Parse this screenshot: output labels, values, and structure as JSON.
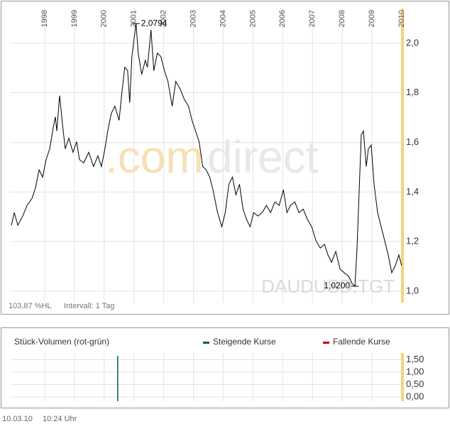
{
  "chart_data": [
    {
      "type": "line",
      "watermark": [
        ".com",
        "direct"
      ],
      "instrument": "DAUDUSD.TGT",
      "info": [
        "103,87 %HL",
        "Intervall: 1 Tag"
      ],
      "xlim": [
        1996.83,
        2010.05
      ],
      "xticks": [
        1998,
        1999,
        2000,
        2001,
        2002,
        2003,
        2004,
        2005,
        2006,
        2007,
        2008,
        2009,
        2010
      ],
      "ylim": [
        0.954,
        2.14
      ],
      "yticks": [
        {
          "value": 1.0,
          "label": "1,0"
        },
        {
          "value": 1.2,
          "label": "1,2"
        },
        {
          "value": 1.4,
          "label": "1,4"
        },
        {
          "value": 1.6,
          "label": "1,6"
        },
        {
          "value": 1.8,
          "label": "1,8"
        },
        {
          "value": 2.0,
          "label": "2,0"
        }
      ],
      "grid": true,
      "x": [
        1996.881,
        1996.976,
        1997.095,
        1997.262,
        1997.405,
        1997.571,
        1997.69,
        1997.81,
        1997.929,
        1998.048,
        1998.167,
        1998.286,
        1998.357,
        1998.405,
        1998.5,
        1998.595,
        1998.69,
        1998.81,
        1998.952,
        1999.071,
        1999.167,
        1999.31,
        1999.476,
        1999.643,
        1999.786,
        1999.905,
        2000.024,
        2000.119,
        2000.238,
        2000.357,
        2000.5,
        2000.595,
        2000.69,
        2000.786,
        2000.857,
        2000.929,
        2001.071,
        2001.143,
        2001.262,
        2001.381,
        2001.452,
        2001.571,
        2001.667,
        2001.786,
        2001.905,
        2002.024,
        2002.143,
        2002.286,
        2002.405,
        2002.548,
        2002.69,
        2002.833,
        2002.952,
        2003.071,
        2003.19,
        2003.31,
        2003.429,
        2003.548,
        2003.667,
        2003.81,
        2003.952,
        2004.071,
        2004.19,
        2004.31,
        2004.429,
        2004.548,
        2004.667,
        2004.786,
        2004.905,
        2005.024,
        2005.167,
        2005.31,
        2005.452,
        2005.595,
        2005.738,
        2005.881,
        2006.024,
        2006.143,
        2006.262,
        2006.405,
        2006.548,
        2006.69,
        2006.833,
        2006.976,
        2007.119,
        2007.262,
        2007.405,
        2007.524,
        2007.643,
        2007.786,
        2007.929,
        2008.071,
        2008.214,
        2008.333,
        2008.429,
        2008.5,
        2008.571,
        2008.643,
        2008.714,
        2008.81,
        2008.881,
        2008.976,
        2009.071,
        2009.19,
        2009.31,
        2009.429,
        2009.548,
        2009.667,
        2009.786,
        2009.905,
        2010.0
      ],
      "series": [
        {
          "color": "#000000",
          "values": [
            1.266,
            1.317,
            1.266,
            1.303,
            1.346,
            1.374,
            1.417,
            1.489,
            1.46,
            1.531,
            1.574,
            1.66,
            1.703,
            1.646,
            1.789,
            1.674,
            1.574,
            1.617,
            1.56,
            1.603,
            1.531,
            1.517,
            1.56,
            1.503,
            1.546,
            1.503,
            1.574,
            1.646,
            1.717,
            1.746,
            1.689,
            1.803,
            1.903,
            1.889,
            1.76,
            1.946,
            2.0794,
            1.96,
            1.874,
            1.931,
            1.903,
            2.054,
            1.889,
            1.96,
            1.946,
            1.889,
            1.846,
            1.746,
            1.846,
            1.817,
            1.774,
            1.746,
            1.689,
            1.646,
            1.603,
            1.503,
            1.489,
            1.46,
            1.403,
            1.317,
            1.26,
            1.317,
            1.431,
            1.46,
            1.389,
            1.431,
            1.331,
            1.289,
            1.26,
            1.317,
            1.303,
            1.317,
            1.346,
            1.317,
            1.36,
            1.346,
            1.409,
            1.317,
            1.346,
            1.36,
            1.317,
            1.331,
            1.289,
            1.26,
            1.203,
            1.174,
            1.189,
            1.146,
            1.117,
            1.16,
            1.089,
            1.074,
            1.06,
            1.031,
            1.02,
            1.174,
            1.403,
            1.631,
            1.646,
            1.503,
            1.574,
            1.589,
            1.431,
            1.317,
            1.26,
            1.203,
            1.146,
            1.074,
            1.103,
            1.146,
            1.103
          ]
        }
      ],
      "annotations": [
        {
          "text": "2,0794",
          "x": 2001.071,
          "y": 2.0794
        },
        {
          "text": "1,0200",
          "x": 2008.429,
          "y": 1.02
        }
      ]
    },
    {
      "type": "bar",
      "title": "Stück-Volumen (rot-grün)",
      "ylim": [
        -0.171,
        1.771
      ],
      "yticks": [
        {
          "value": 0,
          "label": "0,00"
        },
        {
          "value": 0.5,
          "label": "0,50"
        },
        {
          "value": 1.0,
          "label": "1,00"
        },
        {
          "value": 1.5,
          "label": "1,50"
        }
      ],
      "x": [
        2000.452
      ],
      "series": [
        {
          "name": "Steigende Kurse",
          "color": "#006633",
          "values": [
            1.657
          ]
        },
        {
          "name": "Fallende Kurse",
          "color": "#cc0000",
          "values": [
            null
          ]
        }
      ]
    }
  ],
  "footer": {
    "date": "10.03.10",
    "time": "10:24 Uhr"
  }
}
